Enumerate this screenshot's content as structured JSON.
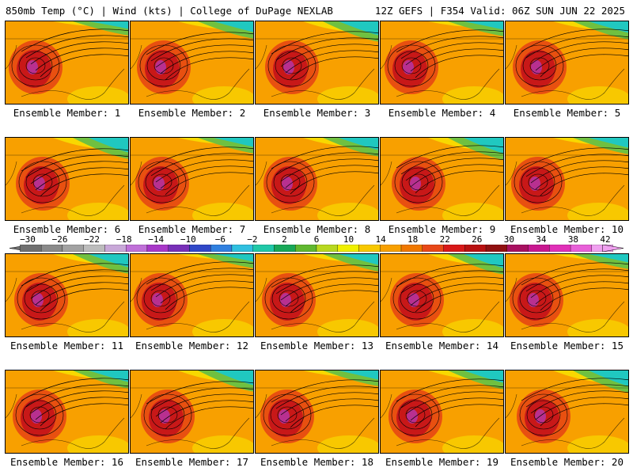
{
  "header": {
    "left": "850mb Temp (°C) | Wind (kts) | College of DuPage NEXLAB",
    "right": "12Z GEFS | F354 Valid: 06Z SUN JUN 22 2025"
  },
  "panels": [
    {
      "label": "Ensemble Member: 1"
    },
    {
      "label": "Ensemble Member: 2"
    },
    {
      "label": "Ensemble Member: 3"
    },
    {
      "label": "Ensemble Member: 4"
    },
    {
      "label": "Ensemble Member: 5"
    },
    {
      "label": "Ensemble Member: 6"
    },
    {
      "label": "Ensemble Member: 7"
    },
    {
      "label": "Ensemble Member: 8"
    },
    {
      "label": "Ensemble Member: 9"
    },
    {
      "label": "Ensemble Member: 10"
    },
    {
      "label": "Ensemble Member: 11"
    },
    {
      "label": "Ensemble Member: 12"
    },
    {
      "label": "Ensemble Member: 13"
    },
    {
      "label": "Ensemble Member: 14"
    },
    {
      "label": "Ensemble Member: 15"
    },
    {
      "label": "Ensemble Member: 16"
    },
    {
      "label": "Ensemble Member: 17"
    },
    {
      "label": "Ensemble Member: 18"
    },
    {
      "label": "Ensemble Member: 19"
    },
    {
      "label": "Ensemble Member: 20"
    }
  ],
  "colorbar": {
    "ticks": [
      "−30",
      "−26",
      "−22",
      "−18",
      "−14",
      "−10",
      "−6",
      "−2",
      "2",
      "6",
      "10",
      "14",
      "18",
      "22",
      "26",
      "30",
      "34",
      "38",
      "42"
    ],
    "colors": [
      "#707070",
      "#8a8a8a",
      "#a2a2a2",
      "#bcbcbc",
      "#c8a8d8",
      "#c070d8",
      "#a838c8",
      "#7830b8",
      "#3048c8",
      "#3080e0",
      "#30c0e0",
      "#20c8a8",
      "#18a858",
      "#60b830",
      "#b8d820",
      "#f0f000",
      "#f8c800",
      "#f8a000",
      "#f07800",
      "#e84818",
      "#d81818",
      "#b81010",
      "#901010",
      "#a81060",
      "#c81890",
      "#e030b8",
      "#e860d8",
      "#f0a0f0"
    ]
  },
  "palette": {
    "cold": "#20c8c0",
    "cool": "#70c040",
    "mild": "#f8d800",
    "warm": "#f8a000",
    "hot": "#e85010",
    "veryhot": "#c81818",
    "extreme": "#b83090"
  }
}
